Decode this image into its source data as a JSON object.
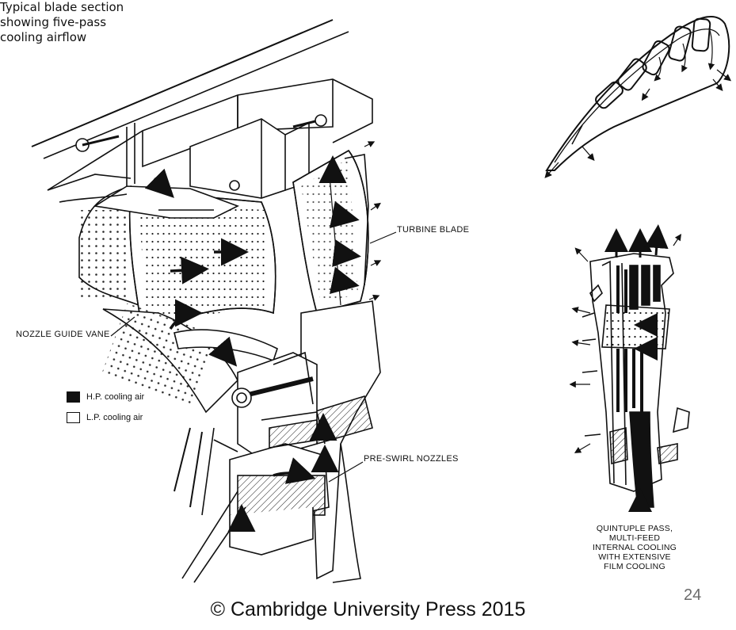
{
  "blade_section": {
    "title_lines": [
      "Typical blade section",
      "showing five-pass",
      "cooling airflow"
    ]
  },
  "labels": {
    "turbine_blade": "TURBINE BLADE",
    "nozzle_guide_vane": "NOZZLE GUIDE VANE",
    "pre_swirl_nozzles": "PRE-SWIRL NOZZLES"
  },
  "legend": {
    "hp": "H.P. cooling air",
    "lp": "L.P. cooling air",
    "colors": {
      "hp": "#111111",
      "lp": "#ffffff"
    }
  },
  "detail_caption": [
    "QUINTUPLE PASS,",
    "MULTI-FEED",
    "INTERNAL COOLING",
    "WITH EXTENSIVE",
    "FILM COOLING"
  ],
  "page_number": "24",
  "copyright": "© Cambridge University Press 2015"
}
